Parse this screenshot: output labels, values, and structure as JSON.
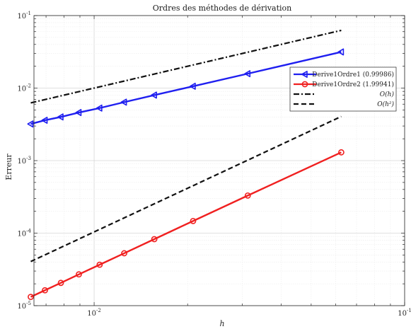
{
  "chart_data": {
    "type": "line",
    "title": "Ordres des méthodes de dérivation",
    "xlabel": "h",
    "ylabel": "Erreur",
    "xscale": "log",
    "yscale": "log",
    "xlim": [
      0.0064,
      0.1
    ],
    "ylim": [
      1e-05,
      0.1
    ],
    "grid": true,
    "legend_position": "top-right",
    "x_ticks": [
      {
        "value": 0.01,
        "base": "10",
        "exp": "-2"
      },
      {
        "value": 0.1,
        "base": "10",
        "exp": "-1"
      }
    ],
    "y_ticks": [
      {
        "value": 1e-05,
        "base": "10",
        "exp": "-5"
      },
      {
        "value": 0.0001,
        "base": "10",
        "exp": "-4"
      },
      {
        "value": 0.001,
        "base": "10",
        "exp": "-3"
      },
      {
        "value": 0.01,
        "base": "10",
        "exp": "-2"
      },
      {
        "value": 0.1,
        "base": "10",
        "exp": "-1"
      }
    ],
    "series": [
      {
        "name": "Derive1Ordre1 (0.99986)",
        "color": "#1f1ff0",
        "style": "solid",
        "marker": "triangle-left",
        "x": [
          0.0625,
          0.03125,
          0.02083,
          0.015625,
          0.0125,
          0.010417,
          0.008929,
          0.0078125,
          0.006944,
          0.00625
        ],
        "y": [
          0.0315,
          0.0158,
          0.0106,
          0.008,
          0.0064,
          0.0053,
          0.0046,
          0.004,
          0.0036,
          0.0032
        ]
      },
      {
        "name": "Derive1Ordre2 (1.99941)",
        "color": "#f02020",
        "style": "solid",
        "marker": "circle",
        "x": [
          0.0625,
          0.03125,
          0.02083,
          0.015625,
          0.0125,
          0.010417,
          0.008929,
          0.0078125,
          0.006944,
          0.00625
        ],
        "y": [
          0.0013,
          0.00033,
          0.000147,
          8.26e-05,
          5.28e-05,
          3.67e-05,
          2.7e-05,
          2.06e-05,
          1.63e-05,
          1.32e-05
        ]
      },
      {
        "name": "O(h)",
        "color": "#111111",
        "style": "dashdot",
        "marker": "none",
        "x": [
          0.00625,
          0.0625
        ],
        "y": [
          0.00625,
          0.0625
        ]
      },
      {
        "name": "O(h²)",
        "color": "#111111",
        "style": "dashed",
        "marker": "none",
        "x": [
          0.00625,
          0.0625
        ],
        "y": [
          4.06e-05,
          0.00406
        ]
      }
    ]
  }
}
